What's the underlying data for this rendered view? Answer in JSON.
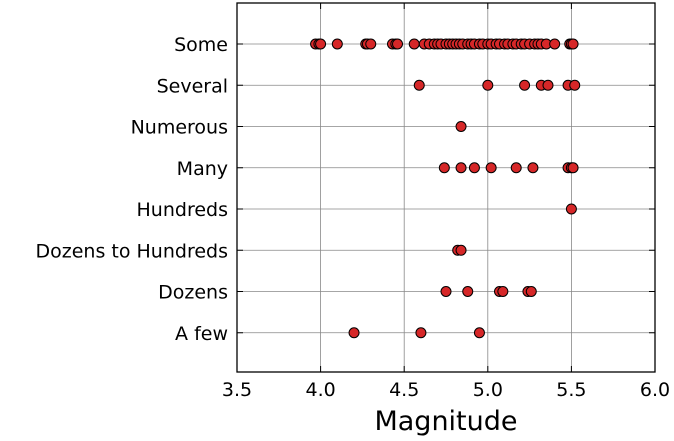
{
  "chart_data": {
    "type": "scatter",
    "xlabel": "Magnitude",
    "ylabel": "",
    "title": "",
    "xlim": [
      3.5,
      6.0
    ],
    "xticks": [
      "3.5",
      "4.0",
      "4.5",
      "5.0",
      "5.5",
      "6.0"
    ],
    "categories": [
      "A few",
      "Dozens",
      "Dozens to Hundreds",
      "Hundreds",
      "Many",
      "Numerous",
      "Several",
      "Some"
    ],
    "grid": true,
    "marker_color": "#d62728",
    "series": [
      {
        "category": "Some",
        "x": [
          3.97,
          3.99,
          4.0,
          4.1,
          4.27,
          4.28,
          4.3,
          4.43,
          4.45,
          4.46,
          4.56,
          4.62,
          4.65,
          4.68,
          4.7,
          4.72,
          4.75,
          4.77,
          4.79,
          4.81,
          4.83,
          4.85,
          4.88,
          4.9,
          4.92,
          4.95,
          4.97,
          5.0,
          5.02,
          5.05,
          5.07,
          5.1,
          5.12,
          5.15,
          5.17,
          5.2,
          5.22,
          5.25,
          5.28,
          5.3,
          5.32,
          5.35,
          5.4,
          5.49,
          5.5,
          5.51
        ]
      },
      {
        "category": "Several",
        "x": [
          4.59,
          5.0,
          5.22,
          5.32,
          5.36,
          5.48,
          5.52
        ]
      },
      {
        "category": "Numerous",
        "x": [
          4.84
        ]
      },
      {
        "category": "Many",
        "x": [
          4.74,
          4.84,
          4.92,
          5.02,
          5.17,
          5.27,
          5.48,
          5.5,
          5.51
        ]
      },
      {
        "category": "Hundreds",
        "x": [
          5.5
        ]
      },
      {
        "category": "Dozens to Hundreds",
        "x": [
          4.82,
          4.84
        ]
      },
      {
        "category": "Dozens",
        "x": [
          4.75,
          4.88,
          5.07,
          5.09,
          5.24,
          5.26
        ]
      },
      {
        "category": "A few",
        "x": [
          4.2,
          4.6,
          4.95
        ]
      }
    ]
  }
}
